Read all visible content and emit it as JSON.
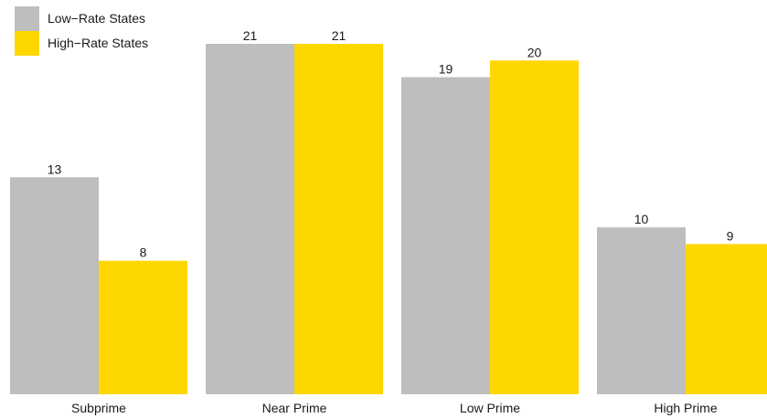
{
  "chart_data": {
    "type": "bar",
    "title": "",
    "xlabel": "",
    "ylabel": "",
    "categories": [
      "Subprime",
      "Near Prime",
      "Low Prime",
      "High Prime"
    ],
    "series": [
      {
        "name": "Low−Rate States",
        "color": "#bebebe",
        "values": [
          13,
          21,
          19,
          10
        ]
      },
      {
        "name": "High−Rate States",
        "color": "#ffd700",
        "values": [
          8,
          21,
          20,
          9
        ]
      }
    ],
    "ylim": [
      0,
      21
    ],
    "grid": false,
    "legend": "top-left",
    "data_labels": true
  }
}
